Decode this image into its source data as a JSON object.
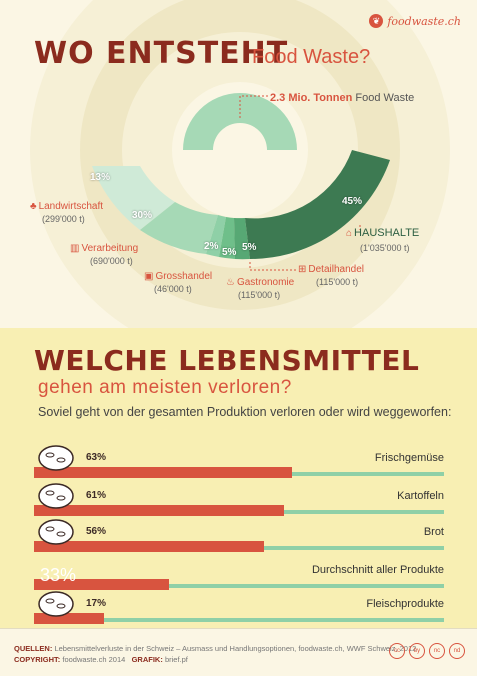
{
  "header": {
    "brand": "foodwaste.ch",
    "title": "WO ENTSTEHT",
    "subtitle": "Food Waste?"
  },
  "total": {
    "amount": "2.3 Mio. Tonnen",
    "label": "Food Waste"
  },
  "sectors": [
    {
      "pct": "13%",
      "name": "Landwirtschaft",
      "amount": "(299'000 t)",
      "icon": "sprout-icon"
    },
    {
      "pct": "30%",
      "name": "Verarbeitung",
      "amount": "(690'000 t)",
      "icon": "factory-icon"
    },
    {
      "pct": "2%",
      "name": "Grosshandel",
      "amount": "(46'000 t)",
      "icon": "truck-icon"
    },
    {
      "pct": "5%",
      "name": "Gastronomie",
      "amount": "(115'000 t)",
      "icon": "chef-hat-icon"
    },
    {
      "pct": "5%",
      "name": "Detailhandel",
      "amount": "(115'000 t)",
      "icon": "cart-icon"
    },
    {
      "pct": "45%",
      "name": "HAUSHALTE",
      "amount": "(1'035'000 t)",
      "icon": "house-icon"
    }
  ],
  "section2": {
    "title": "WELCHE LEBENSMITTEL",
    "subtitle": "gehen am meisten verloren?",
    "intro": "Soviel geht von der gesamten Produktion verloren oder wird weggeworfen:"
  },
  "products": [
    {
      "pct": "63%",
      "value": 63,
      "name": "Frischgemüse",
      "icon": "vegetable-icon"
    },
    {
      "pct": "61%",
      "value": 61,
      "name": "Kartoffeln",
      "icon": "potato-icon"
    },
    {
      "pct": "56%",
      "value": 56,
      "name": "Brot",
      "icon": "bread-icon"
    },
    {
      "pct": "33%",
      "value": 33,
      "name": "Durchschnitt aller Produkte",
      "icon": ""
    },
    {
      "pct": "17%",
      "value": 17,
      "name": "Fleischprodukte",
      "icon": "ham-icon"
    }
  ],
  "footer": {
    "sources_label": "QUELLEN:",
    "sources": "Lebensmittelverluste in der Schweiz – Ausmass und Handlungsoptionen, foodwaste.ch, WWF Schweiz, 2012",
    "copyright_label": "COPYRIGHT:",
    "copyright": "foodwaste.ch 2014",
    "graphic_label": "GRAFIK:",
    "graphic": "brief.pf",
    "license_icons": [
      "cc",
      "by",
      "nc",
      "nd"
    ]
  },
  "colors": {
    "dark_red": "#8b2b1e",
    "red": "#d8543f",
    "green_dark": "#3d7a52",
    "green_mid": "#6fbf8a",
    "green_light": "#a6d9b6",
    "cream": "#fbf6e4",
    "yellow": "#f8efb3"
  }
}
